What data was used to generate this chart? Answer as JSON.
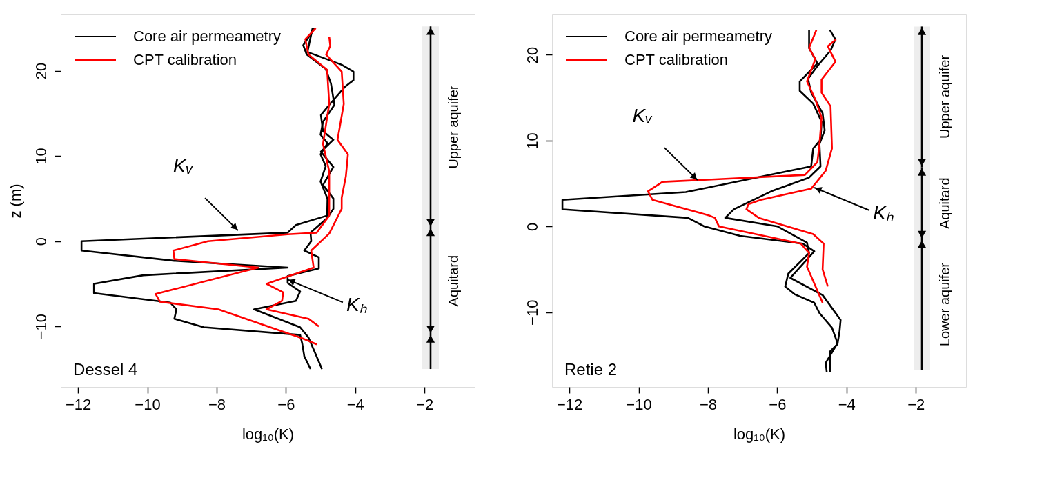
{
  "chart_data": [
    {
      "type": "line",
      "xlabel": "log₁₀(K)",
      "ylabel": "z (m)",
      "xlim": [
        -12.5,
        -0.55
      ],
      "ylim": [
        -17.1,
        26.6
      ],
      "xticks": [
        -12,
        -10,
        -8,
        -6,
        -4,
        -2
      ],
      "yticks": [
        -10,
        0,
        10,
        20
      ],
      "legend": "top left",
      "line_style": "solid",
      "series": [
        {
          "name": "Core air permeametry",
          "color": "#000000",
          "x": [
            -5.17,
            -5.5,
            -5.4,
            -4.85,
            -4.7,
            -4.6,
            -4.93,
            -5.0,
            -4.8,
            -5.0,
            -4.85,
            -5.0,
            -4.8,
            -4.81,
            -5.71,
            -5.95,
            -11.9,
            -11.9,
            -9.22,
            -5.95,
            -10.12,
            -11.54,
            -11.54,
            -9.34,
            -9.16,
            -9.22,
            -8.37,
            -5.59,
            -5.53,
            -5.47,
            -5.29
          ],
          "values": [
            25.0,
            23.0,
            21.9,
            20.2,
            18.5,
            16.0,
            14.0,
            12.5,
            11.5,
            10.2,
            8.8,
            7.0,
            5.0,
            3.0,
            1.9,
            1.0,
            0.0,
            -1.1,
            -2.3,
            -3.1,
            -4.0,
            -5.0,
            -6.1,
            -7.2,
            -8.0,
            -9.1,
            -10.1,
            -11.0,
            -12.0,
            -13.5,
            -15.0
          ]
        },
        {
          "color": "#000000",
          "x": [
            -5.23,
            -5.38,
            -4.39,
            -4.05,
            -4.05,
            -4.3,
            -4.75,
            -4.99,
            -4.93,
            -4.63,
            -4.99,
            -4.63,
            -4.93,
            -4.63,
            -4.63,
            -4.81,
            -5.29,
            -5.27,
            -5.47,
            -5.05,
            -5.05,
            -5.95,
            -5.95,
            -5.59,
            -5.71,
            -6.92,
            -5.59,
            -5.35,
            -5.17,
            -4.96
          ],
          "values": [
            25.0,
            22.2,
            20.7,
            19.9,
            18.9,
            18.1,
            16.0,
            14.8,
            12.9,
            11.9,
            10.5,
            8.7,
            6.6,
            5.0,
            3.8,
            2.7,
            1.0,
            0.0,
            -1.1,
            -1.9,
            -3.2,
            -4.1,
            -4.9,
            -5.9,
            -7.0,
            -8.0,
            -10.1,
            -11.3,
            -13.0,
            -15.0
          ]
        },
        {
          "name": "CPT calibration",
          "color": "#ff0000",
          "x": [
            -5.14,
            -5.44,
            -5.35,
            -4.81,
            -4.75,
            -4.93,
            -4.75,
            -4.75,
            -5.11,
            -5.95,
            -8.25,
            -9.25,
            -9.22,
            -6.8,
            -9.76,
            -9.64,
            -7.95,
            -5.53,
            -5.11
          ],
          "values": [
            25.0,
            23.7,
            21.9,
            20.1,
            16.1,
            11.4,
            8.2,
            3.0,
            1.0,
            0.8,
            0.0,
            -1.1,
            -2.1,
            -3.1,
            -6.2,
            -7.1,
            -8.0,
            -11.4,
            -12.1
          ]
        },
        {
          "color": "#ff0000",
          "x": [
            -4.75,
            -4.72,
            -4.84,
            -4.39,
            -4.33,
            -4.51,
            -4.21,
            -4.27,
            -4.39,
            -4.39,
            -4.75,
            -5.27,
            -5.2,
            -6.56,
            -6.08,
            -6.11,
            -6.56,
            -5.35,
            -5.05
          ],
          "values": [
            24.0,
            22.9,
            21.9,
            19.9,
            16.1,
            11.9,
            10.2,
            7.6,
            5.1,
            3.8,
            0.9,
            -1.1,
            -3.1,
            -5.0,
            -6.0,
            -7.0,
            -8.0,
            -9.1,
            -10.0
          ]
        }
      ],
      "bands": [
        {
          "axis": "y",
          "from": 1.6,
          "to": 25.2,
          "label": "Upper aquifer"
        },
        {
          "axis": "y",
          "from": -10.9,
          "to": 1.6,
          "label": "Aquitard"
        },
        {
          "axis": "y",
          "from": -15.0,
          "to": -10.9
        }
      ],
      "annotations": [
        {
          "text": "Kᵥ",
          "x": -7.38,
          "y": 1.26
        },
        {
          "text": "Kₕ",
          "x": -5.95,
          "y": -4.5
        },
        "Dessel 4"
      ]
    },
    {
      "type": "line",
      "xlabel": "log₁₀(K)",
      "xlim": [
        -12.5,
        -0.55
      ],
      "ylim": [
        -18.7,
        24.7
      ],
      "xticks": [
        -12,
        -10,
        -8,
        -6,
        -4,
        -2
      ],
      "yticks": [
        -10,
        0,
        10,
        20
      ],
      "legend": "top left",
      "line_style": "solid",
      "series": [
        {
          "name": "Core air permeametry",
          "color": "#000000",
          "x": [
            -5.08,
            -5.08,
            -4.84,
            -5.35,
            -5.35,
            -4.96,
            -4.72,
            -4.75,
            -4.96,
            -5.02,
            -8.64,
            -12.2,
            -12.2,
            -8.58,
            -8.1,
            -7.07,
            -5.26,
            -4.93,
            -5.62,
            -4.69,
            -4.17,
            -4.2,
            -4.26,
            -4.48,
            -4.48
          ],
          "values": [
            22.9,
            20.8,
            19.0,
            16.9,
            15.8,
            14.3,
            12.2,
            10.1,
            9.1,
            7.0,
            4.0,
            3.1,
            2.0,
            1.0,
            0.0,
            -1.1,
            -2.0,
            -2.9,
            -6.0,
            -8.0,
            -10.9,
            -12.2,
            -13.7,
            -14.6,
            -17.0
          ]
        },
        {
          "color": "#000000",
          "x": [
            -4.48,
            -4.32,
            -4.46,
            -4.84,
            -5.11,
            -5.02,
            -4.69,
            -4.63,
            -4.78,
            -4.75,
            -5.08,
            -6.17,
            -7.25,
            -7.5,
            -5.99,
            -5.14,
            -5.08,
            -5.68,
            -5.77,
            -5.5,
            -4.93,
            -4.78,
            -4.42,
            -4.26,
            -4.6,
            -4.57
          ],
          "values": [
            22.9,
            21.8,
            20.5,
            18.7,
            17.2,
            15.6,
            13.2,
            11.2,
            9.6,
            7.0,
            5.7,
            4.1,
            2.0,
            1.0,
            0.0,
            -1.9,
            -3.1,
            -5.5,
            -7.0,
            -7.9,
            -8.9,
            -10.1,
            -11.8,
            -13.6,
            -15.9,
            -17.0
          ]
        },
        {
          "name": "CPT calibration",
          "color": "#ff0000",
          "x": [
            -4.87,
            -5.08,
            -4.9,
            -5.14,
            -4.9,
            -4.72,
            -4.78,
            -4.84,
            -5.2,
            -9.31,
            -9.73,
            -9.6,
            -7.98,
            -7.8,
            -7.68,
            -5.32,
            -5.08,
            -5.14,
            -4.69
          ],
          "values": [
            22.9,
            20.8,
            19.5,
            16.9,
            14.8,
            12.7,
            9.6,
            7.5,
            6.0,
            5.2,
            4.1,
            3.1,
            1.3,
            1.0,
            0.0,
            -2.0,
            -3.1,
            -4.7,
            -8.9
          ]
        },
        {
          "color": "#ff0000",
          "x": [
            -4.3,
            -4.54,
            -4.32,
            -4.72,
            -4.72,
            -4.46,
            -4.42,
            -4.6,
            -5.02,
            -6.47,
            -6.83,
            -6.89,
            -6.53,
            -4.96,
            -4.66,
            -4.69,
            -4.54
          ],
          "values": [
            21.8,
            21.0,
            19.2,
            17.1,
            15.6,
            14.0,
            9.1,
            6.5,
            4.4,
            3.1,
            2.6,
            2.0,
            1.0,
            -0.9,
            -2.0,
            -5.0,
            -7.0
          ]
        }
      ],
      "bands": [
        {
          "axis": "y",
          "from": 6.9,
          "to": 23.3,
          "label": "Upper aquifer"
        },
        {
          "axis": "y",
          "from": -1.5,
          "to": 6.9,
          "label": "Aquitard"
        },
        {
          "axis": "y",
          "from": -16.7,
          "to": -1.5,
          "label": "Lower aquifer"
        }
      ],
      "annotations": [
        {
          "text": "Kᵥ",
          "x": -8.3,
          "y": 5.4
        },
        {
          "text": "Kₕ",
          "x": -4.93,
          "y": 4.53
        },
        "Retie 2"
      ]
    }
  ]
}
